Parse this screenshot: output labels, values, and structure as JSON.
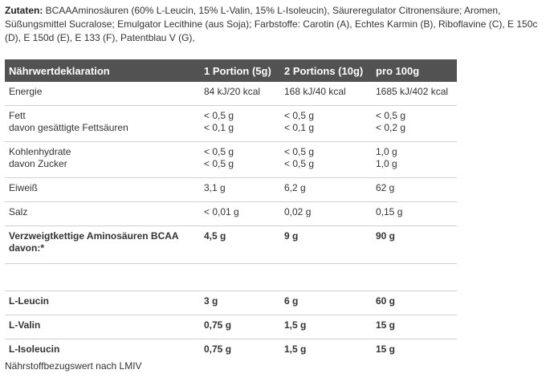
{
  "ingredients": {
    "label": "Zutaten:",
    "text": " BCAAAminosäuren (60% L-Leucin, 15% L-Valin, 15% L-Isoleucin), Säureregulator Citronensäure; Aromen, Süßungsmittel Sucralose; Emulgator Lecithine (aus Soja); Farbstoffe: Carotin (A), Echtes Karmin (B), Riboflavine (C), E 150c (D), E 150d (E), E 133 (F), Patentblau V (G),"
  },
  "table": {
    "headers": [
      "Nährwertdeklaration",
      "1 Portion (5g)",
      "2 Portions (10g)",
      "pro 100g"
    ],
    "energie": {
      "label": "Energie",
      "p1": "84 kJ/20 kcal",
      "p2": "168 kJ/40 kcal",
      "p100": "1685 kJ/402 kcal"
    },
    "fett": {
      "label": "Fett",
      "p1": "< 0,5 g",
      "p2": "< 0,5 g",
      "p100": "< 0,5 g",
      "sub_label": "davon gesättigte Fettsäuren",
      "sub_p1": "< 0,1 g",
      "sub_p2": "< 0,1 g",
      "sub_p100": "< 0,2 g"
    },
    "kohlenhydrate": {
      "label": "Kohlenhydrate",
      "p1": "< 0,5 g",
      "p2": "< 0,5 g",
      "p100": "1,0 g",
      "sub_label": "davon Zucker",
      "sub_p1": "< 0,5 g",
      "sub_p2": "< 0,5 g",
      "sub_p100": "1,0 g"
    },
    "eiweiss": {
      "label": "Eiweiß",
      "p1": "3,1 g",
      "p2": "6,2 g",
      "p100": "62 g"
    },
    "salz": {
      "label": "Salz",
      "p1": "< 0,01 g",
      "p2": "0,02 g",
      "p100": "0,15 g"
    },
    "bcaa": {
      "label": "Verzweigtkettige Aminosäuren BCAA davon:*",
      "p1": "4,5 g",
      "p2": "9 g",
      "p100": "90 g"
    },
    "leucin": {
      "label": "L-Leucin",
      "p1": "3 g",
      "p2": "6 g",
      "p100": "60 g"
    },
    "valin": {
      "label": "L-Valin",
      "p1": "0,75 g",
      "p2": "1,5 g",
      "p100": "15 g"
    },
    "isoleucin": {
      "label": "L-Isoleucin",
      "p1": "0,75 g",
      "p2": "1,5 g",
      "p100": "15 g"
    }
  },
  "footnote": "Nährstoffbezugswert nach LMIV"
}
